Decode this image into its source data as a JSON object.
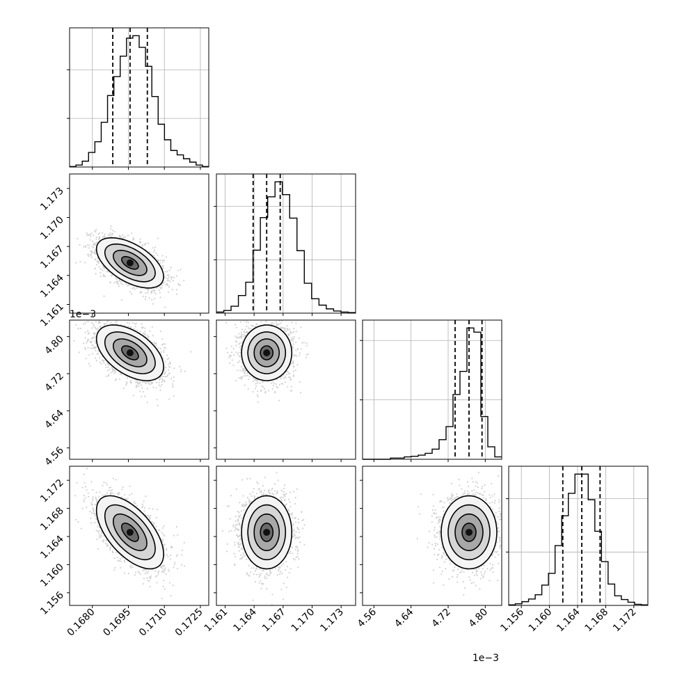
{
  "chart_data": {
    "type": "corner",
    "parameters": [
      {
        "range": [
          0.16705,
          0.17285
        ],
        "ticks": [
          0.168,
          0.1695,
          0.171,
          0.1725
        ],
        "tick_labels": [
          "0.1680",
          "0.1695",
          "0.1710",
          "0.1725"
        ],
        "offset_text": "",
        "quantiles": [
          0.16885,
          0.16957,
          0.17029
        ],
        "mean": 0.16957,
        "sd": 0.0007
      },
      {
        "range": [
          1.1601,
          1.1745
        ],
        "ticks": [
          1.161,
          1.164,
          1.167,
          1.17,
          1.173
        ],
        "tick_labels": [
          "1.161",
          "1.164",
          "1.167",
          "1.170",
          "1.173"
        ],
        "offset_text": "",
        "quantiles": [
          1.1639,
          1.1653,
          1.1667
        ],
        "mean": 1.1653,
        "sd": 0.0013
      },
      {
        "range": [
          4.5355,
          4.8355
        ],
        "ticks": [
          4.56,
          4.64,
          4.72,
          4.8
        ],
        "tick_labels": [
          "4.56",
          "4.64",
          "4.72",
          "4.80"
        ],
        "offset_text": "1e−3",
        "quantiles": [
          4.735,
          4.765,
          4.793
        ],
        "mean": 4.765,
        "sd": 0.03
      },
      {
        "range": [
          1.1542,
          1.174
        ],
        "ticks": [
          1.156,
          1.16,
          1.164,
          1.168,
          1.172
        ],
        "tick_labels": [
          "1.156",
          "1.160",
          "1.164",
          "1.168",
          "1.172"
        ],
        "offset_text": "",
        "quantiles": [
          1.1619,
          1.1646,
          1.1672
        ],
        "mean": 1.1646,
        "sd": 0.0026
      }
    ],
    "histograms": [
      {
        "param": 0,
        "bin_edges_range": [
          0.16705,
          0.17285
        ],
        "counts": [
          1,
          4,
          12,
          30,
          52,
          92,
          147,
          186,
          228,
          265,
          270,
          246,
          207,
          145,
          88,
          56,
          34,
          25,
          17,
          10,
          4,
          1
        ]
      },
      {
        "param": 1,
        "bin_edges_range": [
          1.1601,
          1.1745
        ],
        "counts": [
          2,
          5,
          13,
          33,
          58,
          118,
          179,
          218,
          246,
          222,
          178,
          117,
          56,
          27,
          15,
          8,
          4,
          2,
          1
        ]
      },
      {
        "param": 2,
        "bin_edges_range": [
          4.5355,
          4.8355
        ],
        "counts": [
          0,
          0,
          0,
          0,
          2,
          2,
          4,
          5,
          7,
          10,
          17,
          33,
          55,
          109,
          148,
          221,
          214,
          72,
          21,
          4
        ]
      },
      {
        "param": 3,
        "bin_edges_range": [
          1.1542,
          1.174
        ],
        "counts": [
          1,
          3,
          7,
          12,
          20,
          38,
          60,
          112,
          168,
          210,
          246,
          246,
          198,
          139,
          82,
          40,
          18,
          11,
          6,
          2,
          1
        ]
      }
    ],
    "correlations": {
      "1_0": -0.55,
      "2_0": -0.5,
      "2_1": 0.0,
      "3_0": -0.6,
      "3_1": 0.0,
      "3_2": 0.0
    },
    "contour_levels": [
      "0.5sigma",
      "1sigma",
      "1.5sigma",
      "2sigma"
    ],
    "quantile_linestyle": "dashed",
    "grid": true,
    "colors": {
      "line": "#000000",
      "points": "#9a9a9a",
      "grid": "#b0b0b0",
      "background": "#ffffff"
    }
  }
}
